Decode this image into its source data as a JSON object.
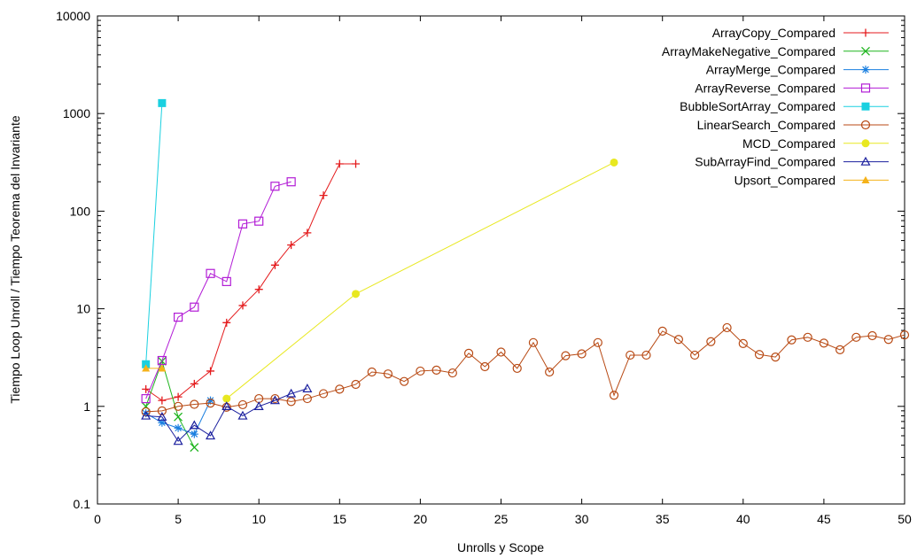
{
  "chart_data": {
    "type": "line",
    "xlabel": "Unrolls y Scope",
    "ylabel": "Tiempo Loop Unroll / Tiempo Teorema del Invariante",
    "xlim": [
      0,
      50
    ],
    "ylim": [
      0.1,
      10000
    ],
    "yscale": "log",
    "xticks": [
      0,
      5,
      10,
      15,
      20,
      25,
      30,
      35,
      40,
      45,
      50
    ],
    "xtick_labels": [
      "0",
      "5",
      "10",
      "15",
      "20",
      "25",
      "30",
      "35",
      "40",
      "45",
      "50"
    ],
    "yticks": [
      0.1,
      1,
      10,
      100,
      1000,
      10000
    ],
    "ytick_labels": [
      "0.1",
      "1",
      "10",
      "100",
      "1000",
      "10000"
    ],
    "grid": false,
    "legend_position": "top-right",
    "series": [
      {
        "name": "ArrayCopy_Compared",
        "color": "#e41a1c",
        "marker": "plus",
        "x": [
          3,
          4,
          5,
          6,
          7,
          8,
          9,
          10,
          11,
          12,
          13,
          14,
          15,
          16
        ],
        "y": [
          1.5,
          1.15,
          1.25,
          1.7,
          2.3,
          7.2,
          10.8,
          15.8,
          28,
          45,
          60,
          145,
          305,
          305
        ]
      },
      {
        "name": "ArrayMakeNegative_Compared",
        "color": "#1fb51f",
        "marker": "x",
        "x": [
          3,
          4,
          5,
          6
        ],
        "y": [
          1.0,
          2.9,
          0.78,
          0.38
        ]
      },
      {
        "name": "ArrayMerge_Compared",
        "color": "#1a7fe0",
        "marker": "star",
        "x": [
          3,
          4,
          5,
          6,
          7
        ],
        "y": [
          0.85,
          0.68,
          0.6,
          0.52,
          1.15
        ]
      },
      {
        "name": "ArrayReverse_Compared",
        "color": "#b21cd6",
        "marker": "square-open",
        "x": [
          3,
          4,
          5,
          6,
          7,
          8,
          9,
          10,
          11,
          12
        ],
        "y": [
          1.2,
          2.95,
          8.2,
          10.4,
          23,
          19,
          74,
          79,
          180,
          200
        ]
      },
      {
        "name": "BubbleSortArray_Compared",
        "color": "#1ad0e0",
        "marker": "square-filled",
        "x": [
          3,
          4
        ],
        "y": [
          2.7,
          1280
        ]
      },
      {
        "name": "LinearSearch_Compared",
        "color": "#b84a14",
        "marker": "circle-open",
        "x": [
          3,
          4,
          5,
          6,
          7,
          8,
          9,
          10,
          11,
          12,
          13,
          14,
          15,
          16,
          17,
          18,
          19,
          20,
          21,
          22,
          23,
          24,
          25,
          26,
          27,
          28,
          29,
          30,
          31,
          32,
          33,
          34,
          35,
          36,
          37,
          38,
          39,
          40,
          41,
          42,
          43,
          44,
          45,
          46,
          47,
          48,
          49,
          50
        ],
        "y": [
          0.88,
          0.9,
          1.0,
          1.05,
          1.08,
          0.98,
          1.04,
          1.2,
          1.2,
          1.12,
          1.2,
          1.35,
          1.5,
          1.68,
          2.25,
          2.15,
          1.8,
          2.3,
          2.35,
          2.2,
          3.5,
          2.55,
          3.6,
          2.45,
          4.5,
          2.25,
          3.3,
          3.45,
          4.5,
          1.3,
          3.35,
          3.35,
          5.9,
          4.85,
          3.35,
          4.6,
          6.4,
          4.4,
          3.4,
          3.2,
          4.8,
          5.1,
          4.45,
          3.8,
          5.1,
          5.3,
          4.85,
          5.4
        ]
      },
      {
        "name": "MCD_Compared",
        "color": "#e8e820",
        "marker": "circle-filled",
        "x": [
          8,
          16,
          32
        ],
        "y": [
          1.2,
          14.2,
          315
        ]
      },
      {
        "name": "SubArrayFind_Compared",
        "color": "#1a1f9e",
        "marker": "triangle-open",
        "x": [
          3,
          4,
          5,
          6,
          7,
          8,
          9,
          10,
          11,
          12,
          13
        ],
        "y": [
          0.8,
          0.78,
          0.44,
          0.64,
          0.5,
          1.0,
          0.8,
          1.0,
          1.15,
          1.35,
          1.52
        ]
      },
      {
        "name": "Upsort_Compared",
        "color": "#f5b21a",
        "marker": "triangle-filled",
        "x": [
          3,
          4
        ],
        "y": [
          2.45,
          2.45
        ]
      }
    ]
  }
}
